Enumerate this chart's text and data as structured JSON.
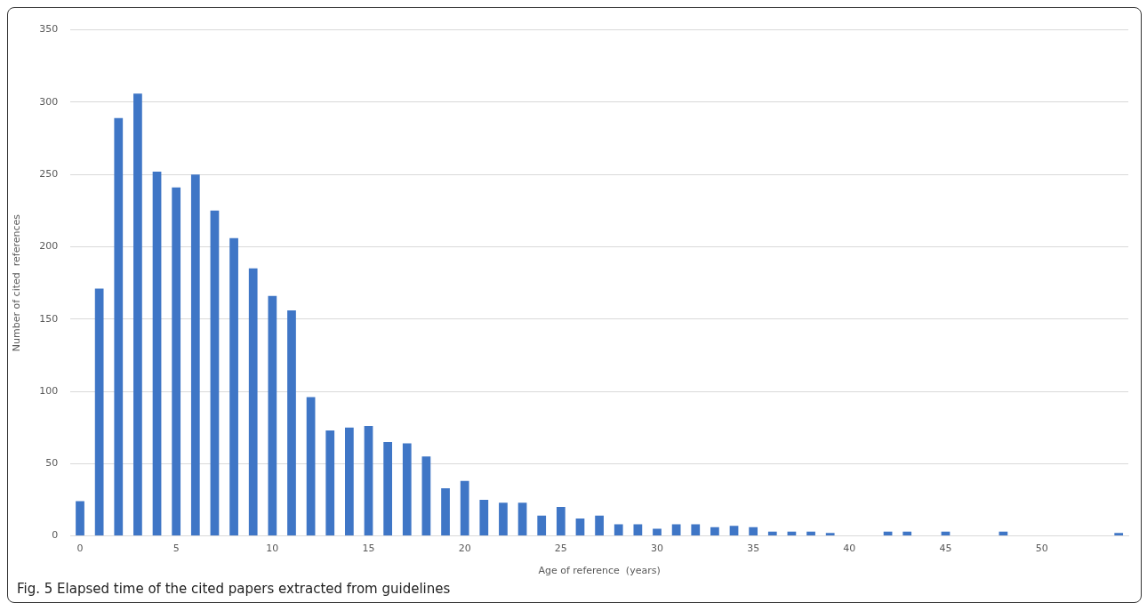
{
  "chart_data": {
    "type": "bar",
    "xlabel": "Age of reference  (years)",
    "ylabel": "Number of cited  references",
    "categories": [
      "0",
      null,
      null,
      null,
      null,
      "5",
      null,
      null,
      null,
      null,
      "10",
      null,
      null,
      null,
      null,
      "15",
      null,
      null,
      null,
      null,
      "20",
      null,
      null,
      null,
      null,
      "25",
      null,
      null,
      null,
      null,
      "30",
      null,
      null,
      null,
      null,
      "35",
      null,
      null,
      null,
      null,
      "40",
      null,
      null,
      null,
      null,
      "45",
      null,
      null,
      null,
      null,
      "50",
      null,
      null,
      null,
      null
    ],
    "values": [
      24,
      171,
      289,
      306,
      252,
      241,
      250,
      225,
      206,
      185,
      166,
      156,
      96,
      73,
      75,
      76,
      65,
      64,
      55,
      33,
      38,
      25,
      23,
      23,
      14,
      20,
      12,
      14,
      8,
      8,
      5,
      8,
      8,
      6,
      7,
      6,
      3,
      3,
      3,
      2,
      0,
      0,
      3,
      3,
      0,
      3,
      0,
      0,
      3,
      0,
      0,
      0,
      0,
      0,
      2
    ],
    "color": "#3f76c6",
    "ylim": [
      0,
      350
    ],
    "yticks": [
      0,
      50,
      100,
      150,
      200,
      250,
      300,
      350
    ],
    "grid": "y",
    "legend": false,
    "annotations": [
      "Fig. 5 Elapsed time of the cited papers extracted from guidelines"
    ]
  }
}
